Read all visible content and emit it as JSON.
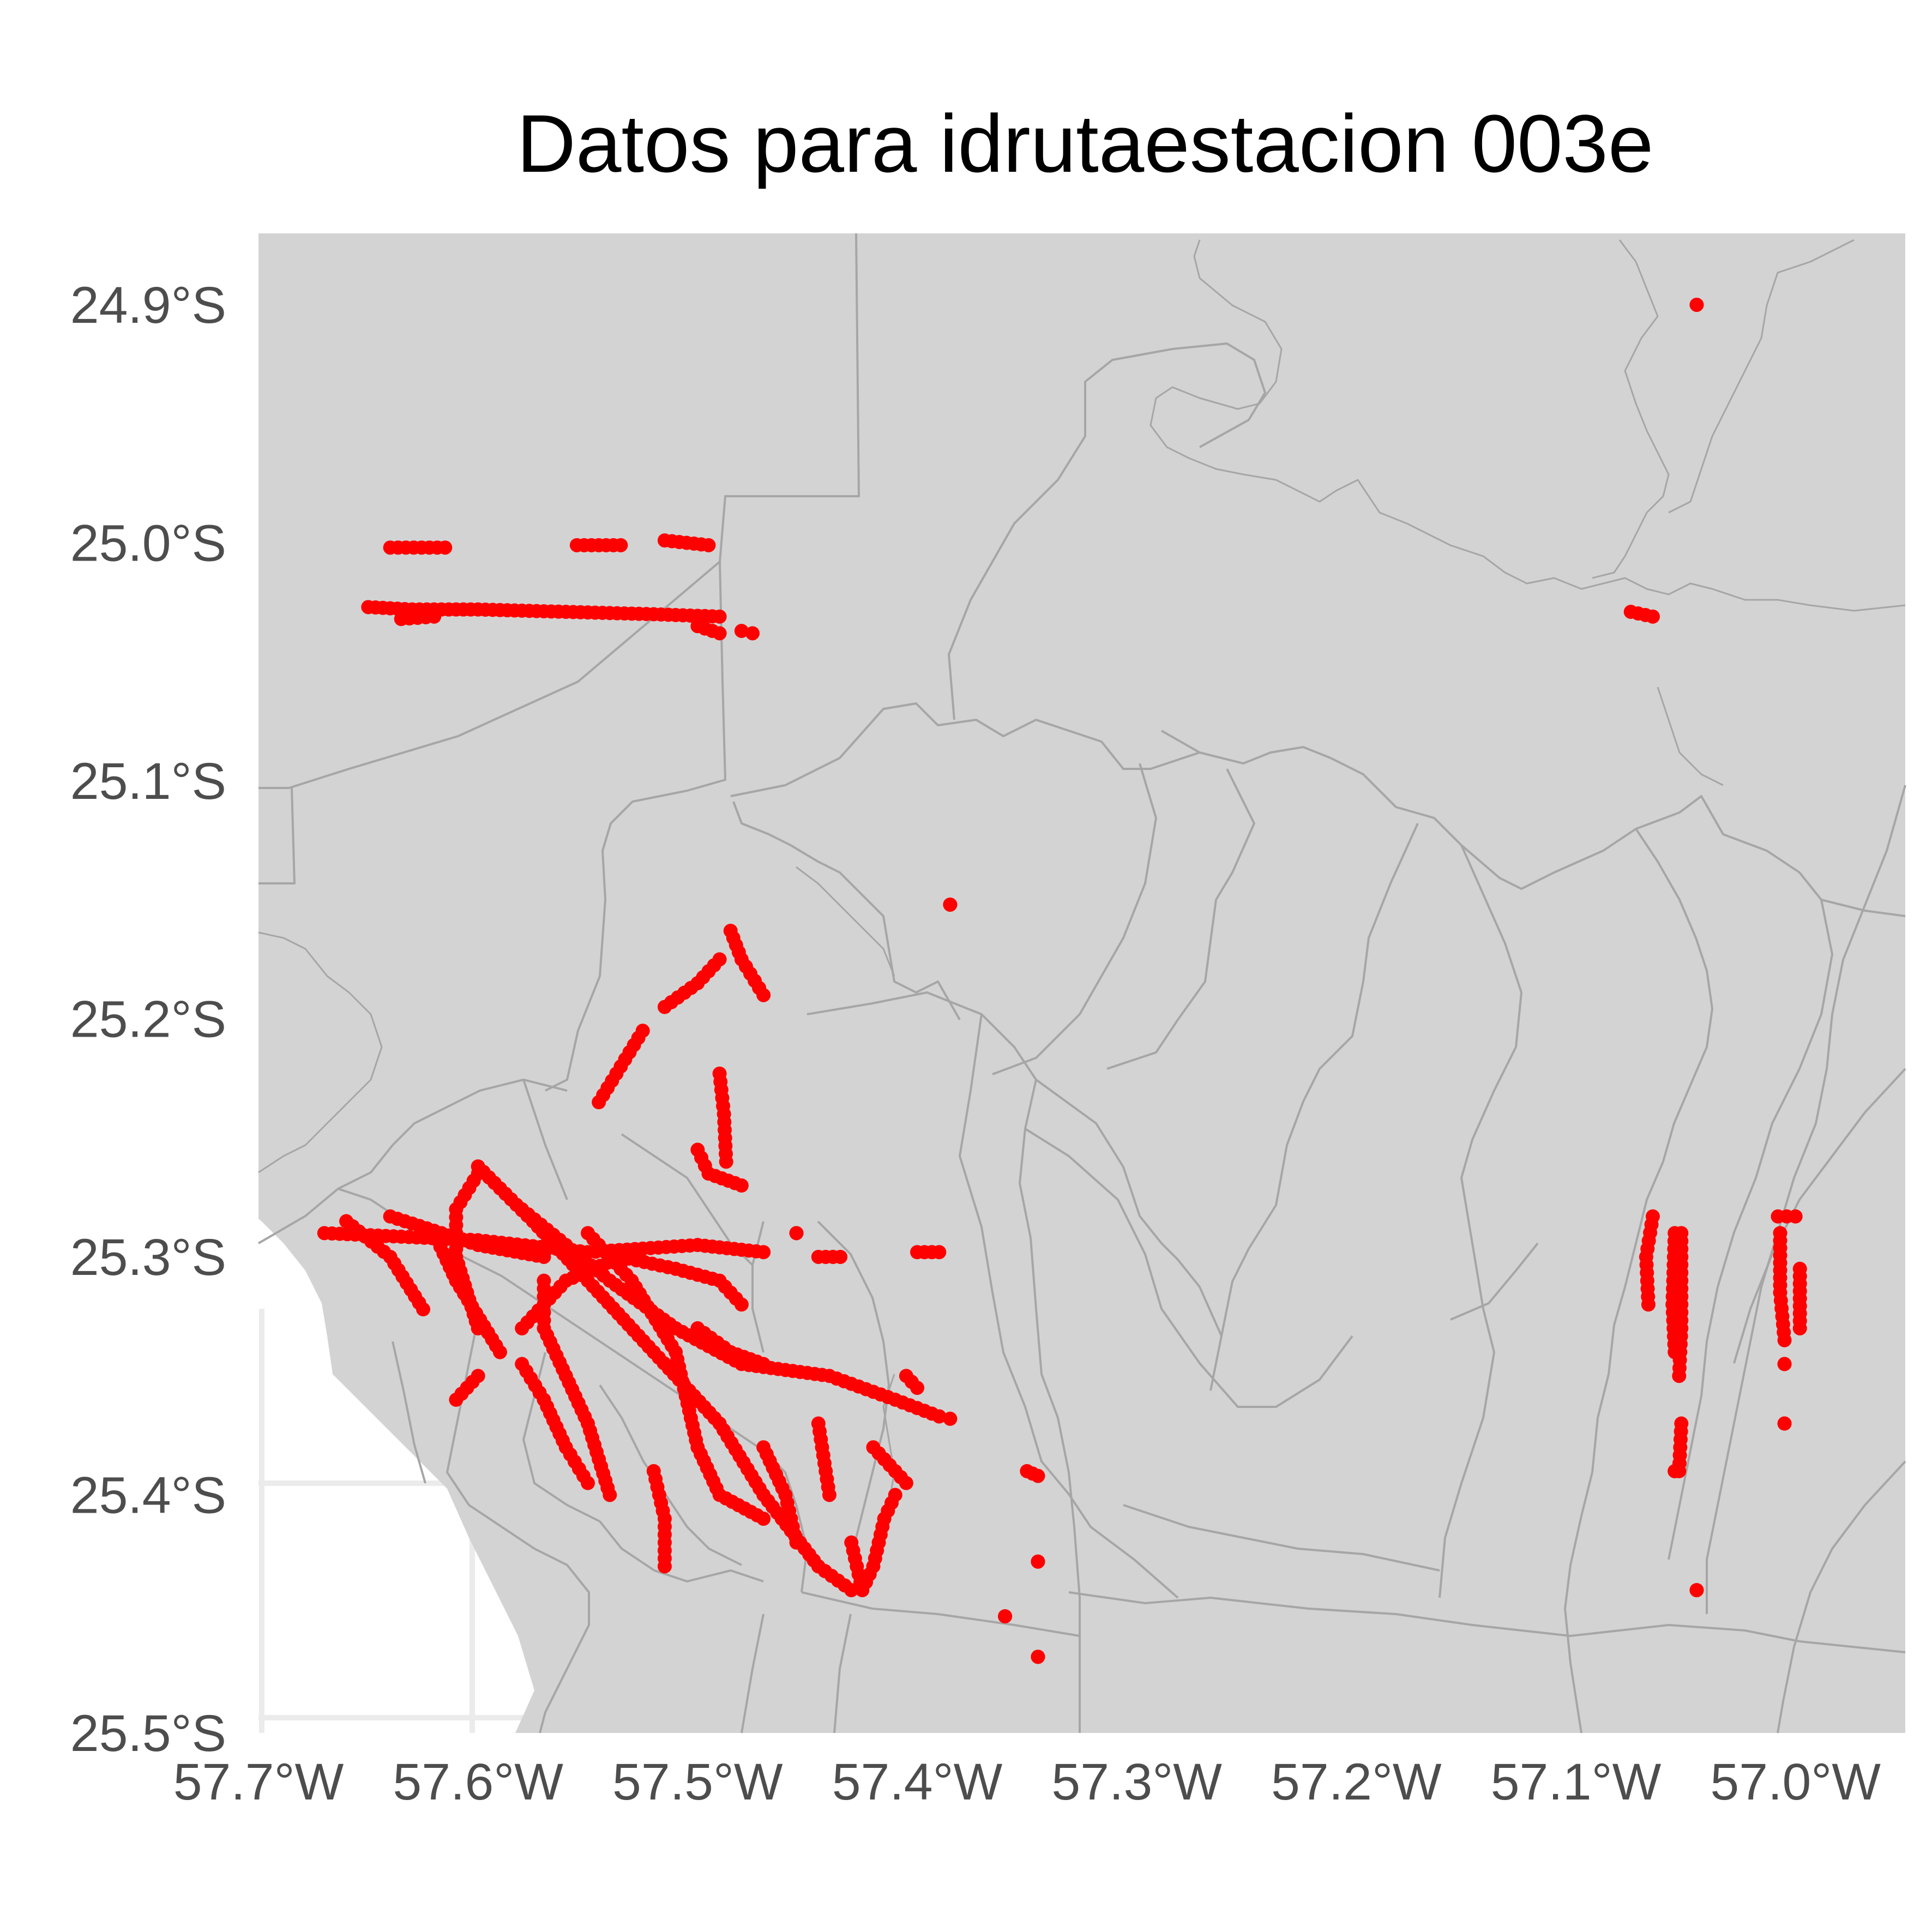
{
  "title": "Datos para idrutaestacion 003e",
  "colors": {
    "land": "#d3d3d3",
    "boundary": "#a6a6a6",
    "points": "#ff0000",
    "gridlines": "#ebebeb",
    "panel_background": "#ffffff",
    "axis_text": "#4d4d4d"
  },
  "map": {
    "projection": "longitude / latitude",
    "x_range": [
      -57.7,
      -56.95
    ],
    "y_range": [
      -25.5,
      -24.87
    ],
    "x_ticks": [
      {
        "value": -57.7,
        "label": "57.7°W"
      },
      {
        "value": -57.6,
        "label": "57.6°W"
      },
      {
        "value": -57.5,
        "label": "57.5°W"
      },
      {
        "value": -57.4,
        "label": "57.4°W"
      },
      {
        "value": -57.3,
        "label": "57.3°W"
      },
      {
        "value": -57.2,
        "label": "57.2°W"
      },
      {
        "value": -57.1,
        "label": "57.1°W"
      },
      {
        "value": -57.0,
        "label": "57.0°W"
      }
    ],
    "y_ticks": [
      {
        "value": -24.9,
        "label": "24.9°S"
      },
      {
        "value": -25.0,
        "label": "25.0°S"
      },
      {
        "value": -25.1,
        "label": "25.1°S"
      },
      {
        "value": -25.2,
        "label": "25.2°S"
      },
      {
        "value": -25.3,
        "label": "25.3°S"
      },
      {
        "value": -25.4,
        "label": "25.4°S"
      },
      {
        "value": -25.5,
        "label": "25.5°S"
      }
    ]
  },
  "point_layer": {
    "name": "idrutaestacion 003e",
    "marker": "circle",
    "tracks": [
      [
        [
          -57.64,
          -25.002
        ],
        [
          -57.615,
          -25.002
        ]
      ],
      [
        [
          -57.555,
          -25.001
        ],
        [
          -57.535,
          -25.001
        ]
      ],
      [
        [
          -57.515,
          -24.999
        ],
        [
          -57.495,
          -25.001
        ]
      ],
      [
        [
          -57.65,
          -25.027
        ],
        [
          -57.63,
          -25.028
        ],
        [
          -57.6,
          -25.028
        ],
        [
          -57.56,
          -25.029
        ],
        [
          -57.52,
          -25.03
        ],
        [
          -57.49,
          -25.031
        ]
      ],
      [
        [
          -57.635,
          -25.032
        ],
        [
          -57.62,
          -25.031
        ]
      ],
      [
        [
          -57.5,
          -25.035
        ],
        [
          -57.49,
          -25.038
        ]
      ],
      [
        [
          -57.48,
          -25.037
        ],
        [
          -57.475,
          -25.038
        ]
      ],
      [
        [
          -57.045,
          -24.9
        ],
        [
          -57.045,
          -24.9
        ]
      ],
      [
        [
          -57.075,
          -25.029
        ],
        [
          -57.065,
          -25.031
        ]
      ],
      [
        [
          -57.385,
          -25.152
        ],
        [
          -57.385,
          -25.152
        ]
      ],
      [
        [
          -57.485,
          -25.163
        ],
        [
          -57.48,
          -25.175
        ],
        [
          -57.47,
          -25.19
        ]
      ],
      [
        [
          -57.49,
          -25.175
        ],
        [
          -57.5,
          -25.185
        ],
        [
          -57.515,
          -25.195
        ]
      ],
      [
        [
          -57.525,
          -25.205
        ],
        [
          -57.535,
          -25.22
        ],
        [
          -57.545,
          -25.235
        ]
      ],
      [
        [
          -57.49,
          -25.223
        ],
        [
          -57.488,
          -25.24
        ],
        [
          -57.487,
          -25.26
        ]
      ],
      [
        [
          -57.5,
          -25.255
        ],
        [
          -57.495,
          -25.265
        ],
        [
          -57.48,
          -25.27
        ]
      ],
      [
        [
          -57.67,
          -25.29
        ],
        [
          -57.6,
          -25.293
        ],
        [
          -57.55,
          -25.298
        ],
        [
          -57.5,
          -25.295
        ],
        [
          -57.47,
          -25.298
        ]
      ],
      [
        [
          -57.6,
          -25.262
        ],
        [
          -57.575,
          -25.285
        ],
        [
          -57.55,
          -25.31
        ],
        [
          -57.52,
          -25.34
        ],
        [
          -57.49,
          -25.37
        ],
        [
          -57.47,
          -25.4
        ],
        [
          -57.445,
          -25.43
        ],
        [
          -57.43,
          -25.44
        ]
      ],
      [
        [
          -57.66,
          -25.285
        ],
        [
          -57.64,
          -25.3
        ],
        [
          -57.625,
          -25.322
        ]
      ],
      [
        [
          -57.64,
          -25.283
        ],
        [
          -57.6,
          -25.295
        ],
        [
          -57.57,
          -25.3
        ]
      ],
      [
        [
          -57.6,
          -25.265
        ],
        [
          -57.61,
          -25.28
        ],
        [
          -57.61,
          -25.3
        ],
        [
          -57.6,
          -25.33
        ]
      ],
      [
        [
          -57.58,
          -25.28
        ],
        [
          -57.56,
          -25.295
        ],
        [
          -57.54,
          -25.31
        ],
        [
          -57.51,
          -25.33
        ],
        [
          -57.48,
          -25.345
        ],
        [
          -57.44,
          -25.35
        ],
        [
          -57.41,
          -25.36
        ],
        [
          -57.39,
          -25.367
        ]
      ],
      [
        [
          -57.55,
          -25.29
        ],
        [
          -57.53,
          -25.31
        ],
        [
          -57.51,
          -25.34
        ],
        [
          -57.5,
          -25.38
        ],
        [
          -57.49,
          -25.4
        ],
        [
          -57.47,
          -25.41
        ]
      ],
      [
        [
          -57.58,
          -25.33
        ],
        [
          -57.56,
          -25.31
        ],
        [
          -57.535,
          -25.3
        ],
        [
          -57.51,
          -25.305
        ],
        [
          -57.49,
          -25.31
        ],
        [
          -57.48,
          -25.32
        ]
      ],
      [
        [
          -57.57,
          -25.31
        ],
        [
          -57.57,
          -25.33
        ],
        [
          -57.56,
          -25.35
        ],
        [
          -57.55,
          -25.37
        ],
        [
          -57.54,
          -25.4
        ]
      ],
      [
        [
          -57.62,
          -25.29
        ],
        [
          -57.61,
          -25.31
        ],
        [
          -57.59,
          -25.34
        ]
      ],
      [
        [
          -57.5,
          -25.33
        ],
        [
          -57.485,
          -25.34
        ],
        [
          -57.47,
          -25.345
        ]
      ],
      [
        [
          -57.43,
          -25.42
        ],
        [
          -57.425,
          -25.44
        ],
        [
          -57.42,
          -25.43
        ],
        [
          -57.415,
          -25.41
        ],
        [
          -57.41,
          -25.4
        ]
      ],
      [
        [
          -57.42,
          -25.38
        ],
        [
          -57.41,
          -25.39
        ],
        [
          -57.405,
          -25.395
        ]
      ],
      [
        [
          -57.445,
          -25.37
        ],
        [
          -57.44,
          -25.4
        ]
      ],
      [
        [
          -57.6,
          -25.35
        ],
        [
          -57.61,
          -25.36
        ]
      ],
      [
        [
          -57.58,
          -25.345
        ],
        [
          -57.57,
          -25.36
        ],
        [
          -57.56,
          -25.38
        ],
        [
          -57.55,
          -25.395
        ]
      ],
      [
        [
          -57.52,
          -25.39
        ],
        [
          -57.515,
          -25.41
        ],
        [
          -57.515,
          -25.43
        ]
      ],
      [
        [
          -57.47,
          -25.38
        ],
        [
          -57.46,
          -25.4
        ],
        [
          -57.455,
          -25.42
        ]
      ],
      [
        [
          -57.405,
          -25.35
        ],
        [
          -57.4,
          -25.355
        ]
      ],
      [
        [
          -57.385,
          -25.368
        ],
        [
          -57.39,
          -25.367
        ]
      ],
      [
        [
          -57.4,
          -25.298
        ],
        [
          -57.39,
          -25.298
        ]
      ],
      [
        [
          -57.455,
          -25.29
        ],
        [
          -57.455,
          -25.29
        ]
      ],
      [
        [
          -57.435,
          -25.3
        ],
        [
          -57.445,
          -25.3
        ]
      ],
      [
        [
          -57.35,
          -25.39
        ],
        [
          -57.345,
          -25.392
        ]
      ],
      [
        [
          -57.345,
          -25.428
        ],
        [
          -57.345,
          -25.428
        ]
      ],
      [
        [
          -57.36,
          -25.451
        ],
        [
          -57.36,
          -25.451
        ]
      ],
      [
        [
          -57.345,
          -25.468
        ],
        [
          -57.345,
          -25.468
        ]
      ],
      [
        [
          -57.065,
          -25.283
        ],
        [
          -57.068,
          -25.3
        ],
        [
          -57.067,
          -25.32
        ]
      ],
      [
        [
          -57.052,
          -25.29
        ],
        [
          -57.052,
          -25.31
        ],
        [
          -57.052,
          -25.33
        ],
        [
          -57.053,
          -25.35
        ]
      ],
      [
        [
          -57.055,
          -25.29
        ],
        [
          -57.056,
          -25.32
        ],
        [
          -57.055,
          -25.34
        ]
      ],
      [
        [
          -57.052,
          -25.37
        ],
        [
          -57.053,
          -25.39
        ]
      ],
      [
        [
          -57.055,
          -25.39
        ],
        [
          -57.055,
          -25.39
        ]
      ],
      [
        [
          -57.008,
          -25.283
        ],
        [
          -57.0,
          -25.283
        ]
      ],
      [
        [
          -57.007,
          -25.29
        ],
        [
          -57.007,
          -25.315
        ],
        [
          -57.005,
          -25.335
        ]
      ],
      [
        [
          -56.998,
          -25.305
        ],
        [
          -56.998,
          -25.33
        ]
      ],
      [
        [
          -57.005,
          -25.345
        ],
        [
          -57.005,
          -25.345
        ]
      ],
      [
        [
          -57.005,
          -25.37
        ],
        [
          -57.005,
          -25.37
        ]
      ],
      [
        [
          -57.045,
          -25.44
        ],
        [
          -57.045,
          -25.44
        ]
      ]
    ]
  }
}
